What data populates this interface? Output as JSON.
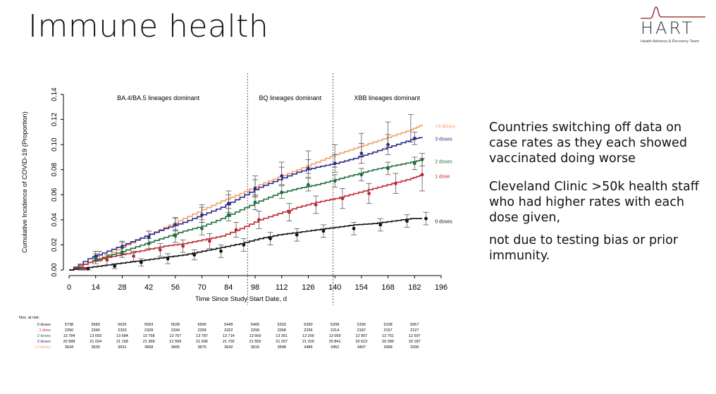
{
  "slide": {
    "title": "Immune health",
    "bullets": [
      "Countries switching off data on case rates as they each showed vaccinated doing worse",
      "Cleveland Clinic >50k health staff who had higher rates with each dose given,",
      "not due to testing bias or prior immunity."
    ]
  },
  "logo": {
    "word": "HART",
    "subtitle": "Health Advisory & Recovery Team",
    "accent_color": "#8a1c1c"
  },
  "chart_data": {
    "type": "line",
    "xlabel": "Time Since Study Start Date, d",
    "ylabel": "Cumulative Incidence of COVID-19 (Proportion)",
    "xlim": [
      0,
      196
    ],
    "ylim": [
      0,
      0.14
    ],
    "x_ticks": [
      0,
      14,
      28,
      42,
      56,
      70,
      84,
      98,
      112,
      126,
      140,
      154,
      168,
      182,
      196
    ],
    "y_ticks": [
      0.0,
      0.02,
      0.04,
      0.06,
      0.08,
      0.1,
      0.12,
      0.14
    ],
    "y_tick_labels": [
      "0.00",
      "0.02",
      "0.04",
      "0.06",
      "0.08",
      "0.10",
      "0.12",
      "0.14"
    ],
    "periods": [
      {
        "label": "BA.4/BA.5 lineages dominant",
        "start": 0,
        "end": 94
      },
      {
        "label": "BQ lineages dominant",
        "start": 94,
        "end": 139
      },
      {
        "label": "XBB lineages dominant",
        "start": 139,
        "end": 196
      }
    ],
    "period_dividers": [
      94,
      139
    ],
    "legend_position": "right",
    "series": [
      {
        "name": ">3 doses",
        "color": "#f2a06a",
        "x": [
          0,
          10,
          20,
          30,
          40,
          50,
          60,
          70,
          80,
          90,
          100,
          110,
          120,
          130,
          140,
          150,
          160,
          170,
          180,
          186
        ],
        "y": [
          0,
          0.006,
          0.012,
          0.02,
          0.027,
          0.034,
          0.041,
          0.048,
          0.055,
          0.061,
          0.068,
          0.074,
          0.08,
          0.086,
          0.092,
          0.097,
          0.102,
          0.107,
          0.112,
          0.116
        ]
      },
      {
        "name": "3 doses",
        "color": "#2e2a8c",
        "x": [
          0,
          10,
          20,
          30,
          40,
          50,
          60,
          70,
          80,
          90,
          100,
          110,
          120,
          130,
          140,
          150,
          160,
          170,
          180,
          186
        ],
        "y": [
          0,
          0.009,
          0.015,
          0.021,
          0.027,
          0.033,
          0.038,
          0.044,
          0.05,
          0.058,
          0.066,
          0.072,
          0.078,
          0.082,
          0.085,
          0.089,
          0.094,
          0.099,
          0.104,
          0.106
        ]
      },
      {
        "name": "2 doses",
        "color": "#1e6e3e",
        "x": [
          0,
          10,
          20,
          30,
          40,
          50,
          60,
          70,
          80,
          90,
          100,
          110,
          120,
          130,
          140,
          150,
          160,
          170,
          180,
          186
        ],
        "y": [
          0,
          0.006,
          0.011,
          0.016,
          0.021,
          0.026,
          0.031,
          0.035,
          0.041,
          0.048,
          0.055,
          0.061,
          0.065,
          0.068,
          0.072,
          0.076,
          0.08,
          0.083,
          0.086,
          0.088
        ]
      },
      {
        "name": "1 dose",
        "color": "#c0272d",
        "x": [
          0,
          10,
          20,
          30,
          40,
          50,
          60,
          70,
          80,
          90,
          100,
          110,
          120,
          130,
          140,
          150,
          160,
          170,
          180,
          186
        ],
        "y": [
          0,
          0.006,
          0.01,
          0.013,
          0.016,
          0.019,
          0.021,
          0.024,
          0.027,
          0.033,
          0.04,
          0.045,
          0.05,
          0.054,
          0.057,
          0.061,
          0.065,
          0.069,
          0.073,
          0.076
        ]
      },
      {
        "name": "0 doses",
        "color": "#111111",
        "x": [
          0,
          10,
          20,
          30,
          40,
          50,
          60,
          70,
          80,
          90,
          100,
          110,
          120,
          130,
          140,
          150,
          160,
          170,
          180,
          186
        ],
        "y": [
          0,
          0.002,
          0.004,
          0.006,
          0.008,
          0.01,
          0.012,
          0.015,
          0.018,
          0.021,
          0.025,
          0.028,
          0.03,
          0.032,
          0.034,
          0.036,
          0.037,
          0.039,
          0.041,
          0.041
        ]
      }
    ],
    "markers": {
      ">3 doses": [],
      "3 doses": [
        [
          182,
          0.105,
          0.1,
          0.11
        ]
      ],
      "2 doses": [
        [
          6,
          0.001,
          0.0,
          0.002
        ],
        [
          14,
          0.009,
          0.005,
          0.013
        ],
        [
          28,
          0.014,
          0.01,
          0.018
        ],
        [
          42,
          0.021,
          0.017,
          0.025
        ],
        [
          56,
          0.027,
          0.022,
          0.032
        ],
        [
          70,
          0.033,
          0.028,
          0.038
        ],
        [
          84,
          0.044,
          0.039,
          0.049
        ],
        [
          98,
          0.054,
          0.048,
          0.06
        ],
        [
          112,
          0.062,
          0.057,
          0.067
        ],
        [
          126,
          0.068,
          0.063,
          0.073
        ],
        [
          140,
          0.071,
          0.066,
          0.076
        ],
        [
          154,
          0.076,
          0.071,
          0.081
        ],
        [
          168,
          0.081,
          0.076,
          0.086
        ],
        [
          182,
          0.085,
          0.08,
          0.09
        ],
        [
          186,
          0.088,
          0.083,
          0.093
        ]
      ],
      "1 dose": [
        [
          8,
          0.001,
          0.0,
          0.002
        ],
        [
          20,
          0.008,
          0.004,
          0.012
        ],
        [
          34,
          0.011,
          0.007,
          0.015
        ],
        [
          48,
          0.016,
          0.011,
          0.021
        ],
        [
          60,
          0.019,
          0.014,
          0.024
        ],
        [
          74,
          0.023,
          0.017,
          0.029
        ],
        [
          88,
          0.032,
          0.026,
          0.038
        ],
        [
          100,
          0.04,
          0.033,
          0.047
        ],
        [
          116,
          0.046,
          0.039,
          0.053
        ],
        [
          130,
          0.052,
          0.045,
          0.059
        ],
        [
          144,
          0.057,
          0.049,
          0.065
        ],
        [
          158,
          0.061,
          0.053,
          0.069
        ],
        [
          172,
          0.069,
          0.061,
          0.077
        ],
        [
          186,
          0.076,
          0.063,
          0.089
        ]
      ],
      "0 doses": [
        [
          10,
          0.001,
          0.0,
          0.002
        ],
        [
          24,
          0.003,
          0.001,
          0.005
        ],
        [
          38,
          0.006,
          0.003,
          0.009
        ],
        [
          52,
          0.009,
          0.005,
          0.013
        ],
        [
          66,
          0.012,
          0.008,
          0.016
        ],
        [
          80,
          0.015,
          0.01,
          0.02
        ],
        [
          92,
          0.02,
          0.015,
          0.025
        ],
        [
          106,
          0.025,
          0.02,
          0.03
        ],
        [
          120,
          0.028,
          0.023,
          0.033
        ],
        [
          134,
          0.031,
          0.026,
          0.036
        ],
        [
          150,
          0.033,
          0.028,
          0.038
        ],
        [
          164,
          0.036,
          0.031,
          0.041
        ],
        [
          178,
          0.039,
          0.034,
          0.044
        ],
        [
          188,
          0.041,
          0.036,
          0.046
        ]
      ]
    },
    "orange_errbars": [
      [
        16,
        0.011,
        0.007,
        0.015
      ],
      [
        28,
        0.017,
        0.012,
        0.022
      ],
      [
        42,
        0.026,
        0.021,
        0.031
      ],
      [
        56,
        0.037,
        0.032,
        0.042
      ],
      [
        70,
        0.046,
        0.04,
        0.052
      ],
      [
        84,
        0.056,
        0.049,
        0.063
      ],
      [
        98,
        0.067,
        0.059,
        0.075
      ],
      [
        112,
        0.077,
        0.068,
        0.086
      ],
      [
        126,
        0.086,
        0.077,
        0.095
      ],
      [
        140,
        0.091,
        0.082,
        0.1
      ],
      [
        154,
        0.1,
        0.091,
        0.109
      ],
      [
        168,
        0.108,
        0.098,
        0.118
      ],
      [
        180,
        0.112,
        0.102,
        0.124
      ]
    ],
    "blue_errbars": [
      [
        14,
        0.011,
        0.007,
        0.015
      ],
      [
        28,
        0.018,
        0.013,
        0.023
      ],
      [
        42,
        0.026,
        0.021,
        0.031
      ],
      [
        56,
        0.036,
        0.031,
        0.041
      ],
      [
        70,
        0.044,
        0.038,
        0.05
      ],
      [
        84,
        0.053,
        0.046,
        0.06
      ],
      [
        98,
        0.065,
        0.058,
        0.072
      ],
      [
        112,
        0.075,
        0.068,
        0.082
      ],
      [
        126,
        0.081,
        0.074,
        0.088
      ],
      [
        140,
        0.085,
        0.078,
        0.092
      ],
      [
        154,
        0.093,
        0.085,
        0.101
      ],
      [
        168,
        0.1,
        0.092,
        0.108
      ]
    ],
    "at_risk": {
      "title": "Nos. at risk:",
      "rows": [
        {
          "name": "0 doses",
          "color": "#111111",
          "values": [
            "5738",
            "5683",
            "5626",
            "5593",
            "5528",
            "5506",
            "5449",
            "5406",
            "5333",
            "5260",
            "5208",
            "5156",
            "5108",
            "5067"
          ]
        },
        {
          "name": "1 dose",
          "color": "#c0272d",
          "values": [
            "2350",
            "2340",
            "2333",
            "2328",
            "2334",
            "2328",
            "2322",
            "2299",
            "2268",
            "2236",
            "2214",
            "2187",
            "2157",
            "2127"
          ]
        },
        {
          "name": "2 doses",
          "color": "#1e6e3e",
          "values": [
            "13 784",
            "13 693",
            "13 684",
            "13 758",
            "13 757",
            "13 787",
            "13 714",
            "13 569",
            "13 351",
            "13 200",
            "13 059",
            "12 907",
            "12 751",
            "12 597"
          ]
        },
        {
          "name": "3 doses",
          "color": "#2e2a8c",
          "values": [
            "20 998",
            "21 024",
            "21 158",
            "21 368",
            "21 509",
            "21 696",
            "21 702",
            "21 555",
            "21 257",
            "21 020",
            "20 841",
            "20 613",
            "20 396",
            "20 187"
          ]
        },
        {
          "name": ">3 doses",
          "color": "#f2a06a",
          "values": [
            "3634",
            "3630",
            "3631",
            "3658",
            "3665",
            "3675",
            "3642",
            "3616",
            "3548",
            "3486",
            "3452",
            "3407",
            "3368",
            "3336"
          ]
        }
      ]
    }
  }
}
